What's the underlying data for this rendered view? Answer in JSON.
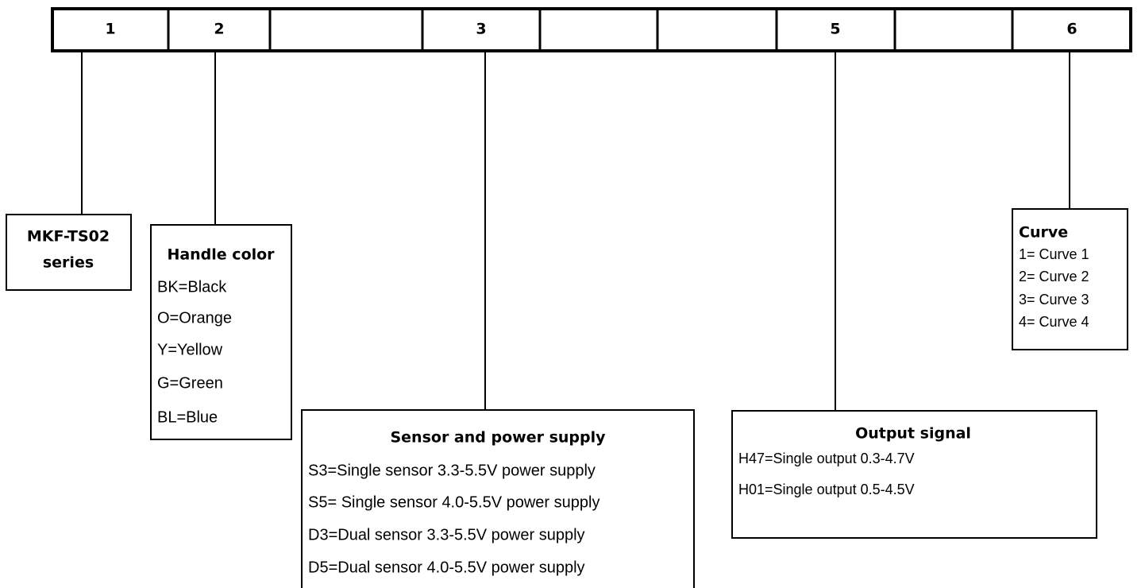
{
  "code_cells": [
    "1",
    "2",
    "3",
    "5",
    "6"
  ],
  "boxes": [
    {
      "title": [
        "MKF-TS02",
        "series"
      ]
    },
    {
      "title": "Handle color",
      "items": [
        "BK=Black",
        "O=Orange",
        "Y=Yellow",
        "G=Green",
        "BL=Blue"
      ]
    },
    {
      "title": "Sensor and power supply",
      "items": [
        "S3=Single sensor 3.3-5.5V power supply",
        "S5= Single sensor 4.0-5.5V power supply",
        "D3=Dual sensor 3.3-5.5V power supply",
        "D5=Dual sensor 4.0-5.5V power supply"
      ]
    },
    {
      "title": "Output signal",
      "items": [
        "H47=Single output 0.3-4.7V",
        "H01=Single output 0.5-4.5V"
      ]
    },
    {
      "title": "Curve",
      "items": [
        "1= Curve 1",
        "2= Curve 2",
        "3= Curve 3",
        "4= Curve 4"
      ]
    }
  ]
}
